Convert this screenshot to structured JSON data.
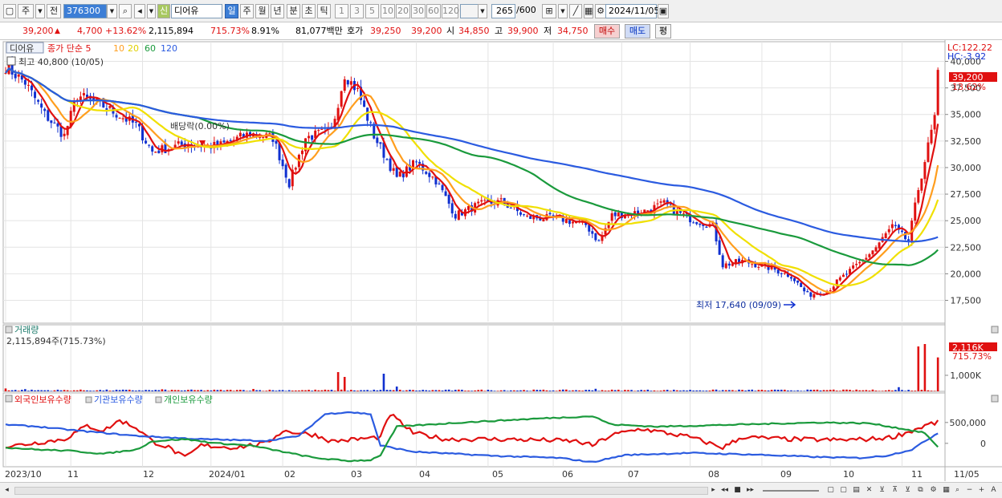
{
  "toolbar": {
    "period_label": "주",
    "prev_label": "전",
    "code_value": "376300",
    "market_badge": "신",
    "name_value": "디어유",
    "period_buttons": [
      "일",
      "주",
      "월",
      "년",
      "분",
      "초",
      "틱"
    ],
    "interval_buttons": [
      "1",
      "3",
      "5",
      "10",
      "20",
      "30",
      "60",
      "120"
    ],
    "count_value": "265",
    "count_total": "/600",
    "date_value": "2024/11/05"
  },
  "infobar": {
    "price": "39,200",
    "change": "4,700",
    "change_pct": "+13.62%",
    "volume": "2,115,894",
    "volume_pct": "715.73%",
    "turnover": "8.91%",
    "amount": "81,077백만",
    "bid_label": "호가",
    "bid1": "39,250",
    "bid2": "39,200",
    "open_label": "시",
    "open": "34,850",
    "high_label": "고",
    "high": "39,900",
    "low_label": "저",
    "low": "34,750",
    "buy_label": "매수",
    "sell_label": "매도",
    "flat_label": "평"
  },
  "chart_data": [
    {
      "type": "candlestick",
      "title": "디어유",
      "legend": [
        "종가 단순 5",
        "10",
        "20",
        "60",
        "120"
      ],
      "legend_colors": [
        "#e01010",
        "#ff9e1e",
        "#f0e000",
        "#1a9a3c",
        "#2b5be0"
      ],
      "high_label": "최고 40,800 (10/05)",
      "low_label": "최저 17,640 (09/09)",
      "event_label": "배당락(0.00%)",
      "lc_label": "LC:122.22",
      "hc_label": "HC:-3.92",
      "price_tag": "39,200",
      "price_tag_pct": "13.62%",
      "y_ticks": [
        "40,000",
        "37,500",
        "35,000",
        "32,500",
        "30,000",
        "27,500",
        "25,000",
        "22,500",
        "20,000",
        "17,500"
      ],
      "y_tick_values": [
        40000,
        37500,
        35000,
        32500,
        30000,
        27500,
        25000,
        22500,
        20000,
        17500
      ],
      "ylim": [
        15350,
        41850
      ],
      "x_tick_labels": [
        "2023/10",
        "11",
        "12",
        "2024/01",
        "02",
        "03",
        "04",
        "05",
        "06",
        "07",
        "08",
        "09",
        "10",
        "11",
        "11/05"
      ],
      "close_anchors": [
        [
          0,
          39500
        ],
        [
          6,
          38000
        ],
        [
          12,
          35000
        ],
        [
          18,
          33000
        ],
        [
          22,
          36800
        ],
        [
          30,
          35800
        ],
        [
          40,
          34000
        ],
        [
          45,
          31500
        ],
        [
          55,
          32200
        ],
        [
          65,
          32000
        ],
        [
          75,
          33200
        ],
        [
          82,
          32800
        ],
        [
          87,
          28500
        ],
        [
          92,
          32800
        ],
        [
          100,
          33500
        ],
        [
          104,
          38800
        ],
        [
          108,
          37200
        ],
        [
          113,
          33000
        ],
        [
          120,
          29000
        ],
        [
          126,
          30500
        ],
        [
          132,
          28800
        ],
        [
          138,
          25500
        ],
        [
          145,
          26500
        ],
        [
          152,
          26800
        ],
        [
          160,
          25300
        ],
        [
          170,
          25200
        ],
        [
          178,
          24600
        ],
        [
          182,
          23000
        ],
        [
          186,
          25500
        ],
        [
          195,
          25800
        ],
        [
          202,
          26600
        ],
        [
          206,
          25800
        ],
        [
          210,
          25200
        ],
        [
          217,
          24500
        ],
        [
          220,
          20800
        ],
        [
          226,
          21200
        ],
        [
          235,
          20500
        ],
        [
          241,
          19800
        ],
        [
          246,
          18000
        ],
        [
          252,
          18400
        ],
        [
          256,
          19500
        ],
        [
          262,
          21000
        ],
        [
          267,
          22500
        ],
        [
          272,
          24500
        ],
        [
          277,
          23000
        ],
        [
          280,
          28000
        ],
        [
          283,
          32000
        ],
        [
          285,
          34700
        ],
        [
          286,
          39200
        ]
      ]
    },
    {
      "type": "bar",
      "title": "거래량",
      "value_label": "2,115,894주(715.73%)",
      "tag": "2,116K",
      "tag_pct": "715.73%",
      "y_ticks": [
        "1,000K"
      ],
      "y_tick_values": [
        1000000
      ],
      "ylim": [
        0,
        3300000
      ],
      "spikes": [
        [
          0,
          180000
        ],
        [
          6,
          140000
        ],
        [
          48,
          130000
        ],
        [
          76,
          150000
        ],
        [
          102,
          1200000
        ],
        [
          104,
          900000
        ],
        [
          116,
          1100000
        ],
        [
          120,
          300000
        ],
        [
          181,
          160000
        ],
        [
          254,
          110000
        ],
        [
          274,
          260000
        ],
        [
          280,
          2800000
        ],
        [
          282,
          2950000
        ],
        [
          286,
          2116000
        ]
      ],
      "baseline": 70000
    },
    {
      "type": "line",
      "legend": [
        "외국인보유수량",
        "기관보유수량",
        "개인보유수량"
      ],
      "series_colors": [
        "#e01010",
        "#2b5be0",
        "#1a9a3c"
      ],
      "y_ticks": [
        "500,000",
        "0"
      ],
      "y_tick_values": [
        500000,
        0
      ],
      "ylim": [
        -560000,
        900000
      ],
      "series": [
        {
          "name": "외국인보유수량",
          "anchors": [
            [
              0,
              -80000
            ],
            [
              8,
              0
            ],
            [
              18,
              100000
            ],
            [
              25,
              420000
            ],
            [
              30,
              300000
            ],
            [
              35,
              550000
            ],
            [
              40,
              380000
            ],
            [
              45,
              50000
            ],
            [
              50,
              -100000
            ],
            [
              55,
              -350000
            ],
            [
              60,
              -50000
            ],
            [
              70,
              -100000
            ],
            [
              80,
              0
            ],
            [
              85,
              300000
            ],
            [
              95,
              200000
            ],
            [
              100,
              50000
            ],
            [
              105,
              80000
            ],
            [
              115,
              150000
            ],
            [
              118,
              700000
            ],
            [
              125,
              250000
            ],
            [
              135,
              100000
            ],
            [
              150,
              100000
            ],
            [
              165,
              80000
            ],
            [
              175,
              50000
            ],
            [
              180,
              -50000
            ],
            [
              186,
              200000
            ],
            [
              195,
              350000
            ],
            [
              210,
              150000
            ],
            [
              220,
              -100000
            ],
            [
              226,
              150000
            ],
            [
              240,
              100000
            ],
            [
              255,
              80000
            ],
            [
              265,
              100000
            ],
            [
              272,
              150000
            ],
            [
              278,
              300000
            ],
            [
              283,
              450000
            ],
            [
              286,
              500000
            ]
          ]
        },
        {
          "name": "기관보유수량",
          "anchors": [
            [
              0,
              450000
            ],
            [
              10,
              400000
            ],
            [
              20,
              320000
            ],
            [
              40,
              180000
            ],
            [
              60,
              100000
            ],
            [
              80,
              60000
            ],
            [
              90,
              180000
            ],
            [
              98,
              700000
            ],
            [
              105,
              750000
            ],
            [
              112,
              700000
            ],
            [
              115,
              -50000
            ],
            [
              125,
              -200000
            ],
            [
              150,
              -300000
            ],
            [
              170,
              -350000
            ],
            [
              180,
              -450000
            ],
            [
              190,
              -280000
            ],
            [
              210,
              -230000
            ],
            [
              230,
              -270000
            ],
            [
              250,
              -330000
            ],
            [
              262,
              -350000
            ],
            [
              270,
              -300000
            ],
            [
              278,
              -150000
            ],
            [
              283,
              100000
            ],
            [
              286,
              250000
            ]
          ]
        },
        {
          "name": "개인보유수량",
          "anchors": [
            [
              0,
              -100000
            ],
            [
              10,
              -150000
            ],
            [
              20,
              -180000
            ],
            [
              30,
              -250000
            ],
            [
              40,
              -150000
            ],
            [
              45,
              50000
            ],
            [
              55,
              100000
            ],
            [
              65,
              0
            ],
            [
              75,
              -50000
            ],
            [
              85,
              -200000
            ],
            [
              95,
              -350000
            ],
            [
              105,
              -420000
            ],
            [
              112,
              -400000
            ],
            [
              115,
              -280000
            ],
            [
              120,
              400000
            ],
            [
              140,
              500000
            ],
            [
              165,
              600000
            ],
            [
              180,
              650000
            ],
            [
              186,
              450000
            ],
            [
              200,
              400000
            ],
            [
              225,
              450000
            ],
            [
              250,
              500000
            ],
            [
              265,
              480000
            ],
            [
              275,
              350000
            ],
            [
              282,
              250000
            ],
            [
              286,
              -100000
            ]
          ]
        }
      ]
    }
  ]
}
